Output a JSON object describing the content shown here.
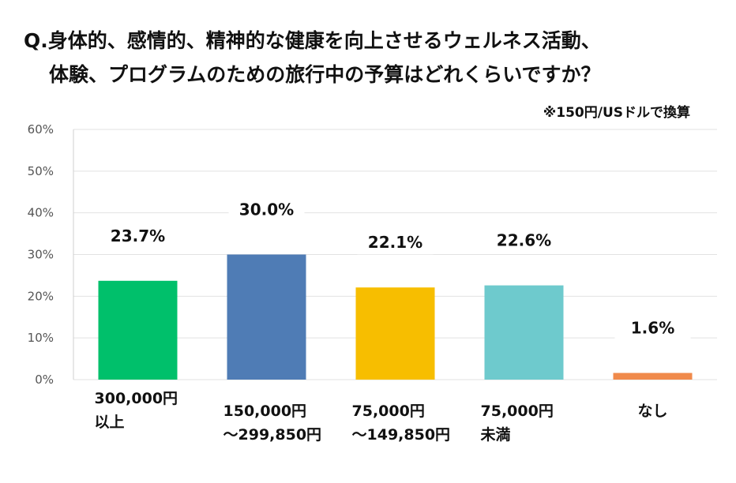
{
  "title": {
    "line1": "Q.身体的、感情的、精神的な健康を向上させるウェルネス活動、",
    "line2": "体験、プログラムのための旅行中の予算はどれくらいですか？"
  },
  "note": "※150円/USドルで換算",
  "colors": {
    "grid": "#e2e2e2",
    "axis_text": "#555555",
    "label_text": "#111111"
  },
  "chart_data": {
    "type": "bar",
    "title": "Q.身体的、感情的、精神的な健康を向上させるウェルネス活動、体験、プログラムのための旅行中の予算はどれくらいですか？",
    "xlabel": "",
    "ylabel": "",
    "ylim": [
      0,
      60
    ],
    "yticks": [
      0,
      10,
      20,
      30,
      40,
      50,
      60
    ],
    "ytick_labels": [
      "0%",
      "10%",
      "20%",
      "30%",
      "40%",
      "50%",
      "60%"
    ],
    "grid": true,
    "categories": [
      [
        "300,000円",
        "以上"
      ],
      [
        "150,000円",
        "～299,850円"
      ],
      [
        "75,000円",
        "～149,850円"
      ],
      [
        "75,000円",
        "未満"
      ],
      [
        "なし"
      ]
    ],
    "values": [
      23.7,
      30.0,
      22.1,
      22.6,
      1.6
    ],
    "value_labels": [
      "23.7%",
      "30.0%",
      "22.1%",
      "22.6%",
      "1.6%"
    ],
    "colors": [
      "#00c06b",
      "#4f7cb5",
      "#f7be00",
      "#6ecacd",
      "#f08a4b"
    ]
  }
}
